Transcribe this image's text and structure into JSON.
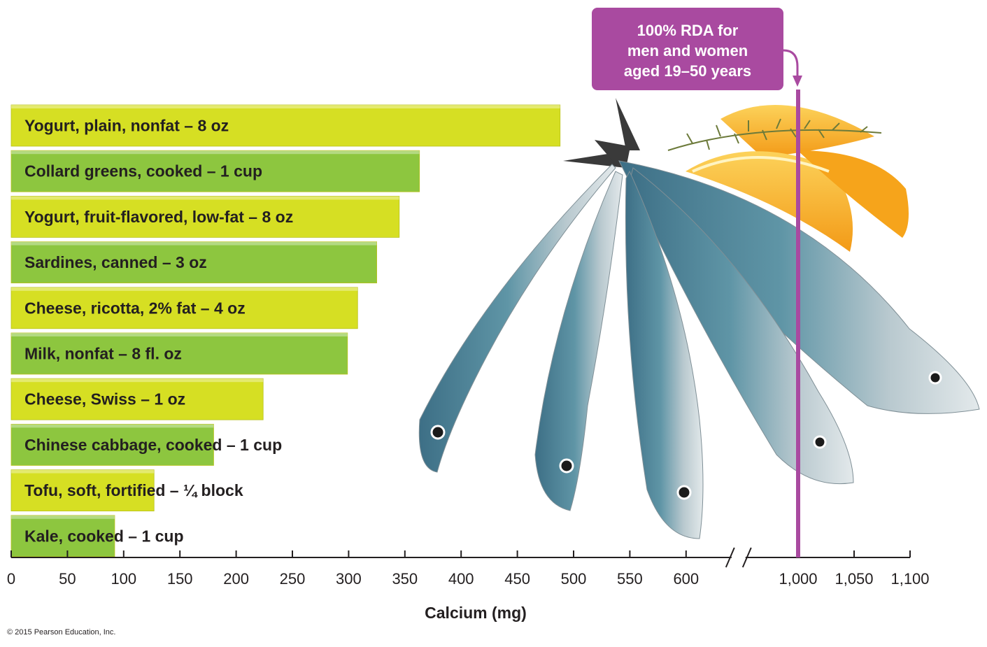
{
  "chart_data": {
    "type": "bar",
    "orientation": "horizontal",
    "categories": [
      "Yogurt, plain, nonfat – 8 oz",
      "Collard greens, cooked – 1 cup",
      "Yogurt, fruit-flavored, low-fat – 8 oz",
      "Sardines, canned – 3 oz",
      "Cheese, ricotta, 2% fat – 4 oz",
      "Milk, nonfat – 8 fl. oz",
      "Cheese, Swiss – 1 oz",
      "Chinese cabbage, cooked – 1 cup",
      "Tofu, soft, fortified – ¼ block",
      "Kale, cooked – 1 cup"
    ],
    "values": [
      488,
      363,
      345,
      325,
      308,
      299,
      224,
      180,
      127,
      92
    ],
    "bar_colors": [
      "#d6df23",
      "#8dc63f",
      "#d6df23",
      "#8dc63f",
      "#d6df23",
      "#8dc63f",
      "#d6df23",
      "#8dc63f",
      "#d6df23",
      "#8dc63f"
    ],
    "xlabel": "Calcium (mg)",
    "xlim": [
      0,
      1100
    ],
    "axis_break": [
      600,
      1000
    ],
    "x_tick_values": [
      0,
      50,
      100,
      150,
      200,
      250,
      300,
      350,
      400,
      450,
      500,
      550,
      600,
      1000,
      1050,
      1100
    ],
    "x_tick_labels": [
      "0",
      "50",
      "100",
      "150",
      "200",
      "250",
      "300",
      "350",
      "400",
      "450",
      "500",
      "550",
      "600",
      "1,000",
      "1,050",
      "1,100"
    ],
    "reference_line": {
      "value": 1000,
      "label_lines": [
        "100% RDA for",
        "men and women",
        "aged 19–50 years"
      ],
      "color": "#a94aa0"
    },
    "grid": false
  },
  "image": {
    "subject": "sardines with lemon wedges and thyme",
    "fish_colors": [
      "#4f7f94",
      "#9bb3bd",
      "#d7dfe2"
    ],
    "lemon_color": "#f6a41b"
  },
  "footer": {
    "copyright": "© 2015 Pearson Education, Inc."
  }
}
